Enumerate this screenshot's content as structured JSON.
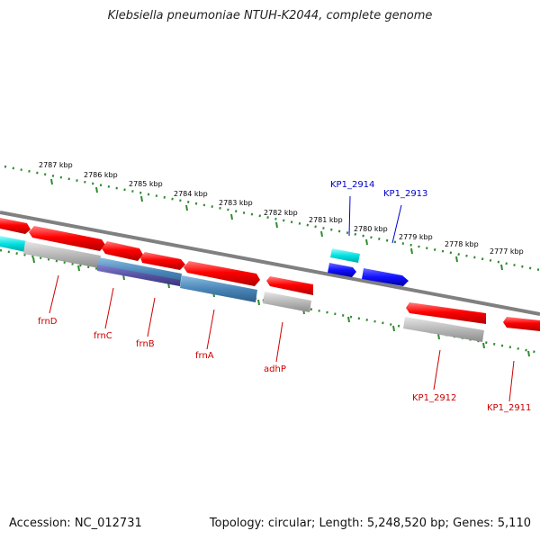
{
  "title": "Klebsiella pneumoniae NTUH-K2044, complete genome",
  "footer": {
    "accession": "Accession: NC_012731",
    "topology": "Topology: circular; Length: 5,248,520 bp; Genes: 5,110"
  },
  "ruler_labels": [
    "2787 kbp",
    "2786 kbp",
    "2785 kbp",
    "2784 kbp",
    "2783 kbp",
    "2782 kbp",
    "2781 kbp",
    "2780 kbp",
    "2779 kbp",
    "2778 kbp",
    "2777 kbp"
  ],
  "genes_below": [
    "frnD",
    "frnC",
    "frnB",
    "frnA",
    "adhP",
    "KP1_2912",
    "KP1_2911"
  ],
  "genes_above": [
    "KP1_2914",
    "KP1_2913"
  ],
  "colors": {
    "ruler": "#2e8b2e",
    "forward": "#ff1a1a",
    "highlight": "#00e5e5",
    "blue": "#1a1aff",
    "steel": "#4a86b8",
    "purple": "#5a4aa0",
    "gray": "#b0b0b0",
    "label_red": "#cc0000",
    "label_blue": "#0000cc"
  }
}
